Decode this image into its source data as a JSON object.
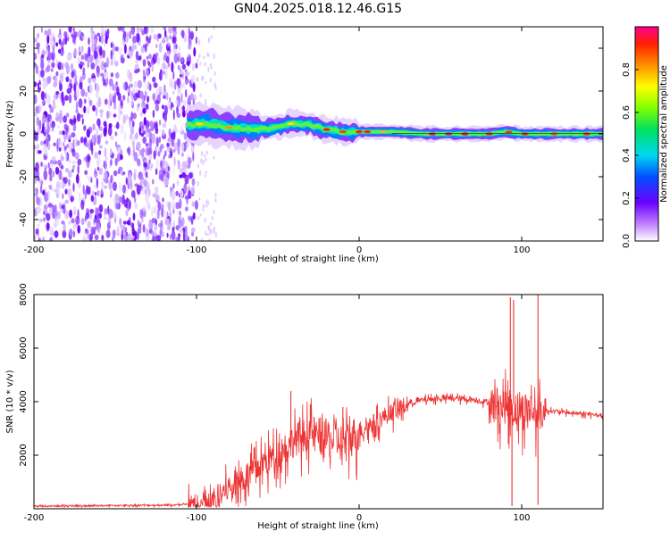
{
  "title": "GN04.2025.018.12.46.G15",
  "chart_data": [
    {
      "type": "heatmap",
      "xlabel": "Height of straight line (km)",
      "ylabel": "Frequency (Hz)",
      "xlim": [
        -200,
        150
      ],
      "ylim": [
        -50,
        50
      ],
      "x_ticks": [
        -200,
        -100,
        0,
        100
      ],
      "y_ticks": [
        -40,
        -20,
        0,
        20,
        40
      ],
      "colorbar": {
        "label": "Normalized spectral amplitude",
        "range": [
          0,
          1
        ],
        "ticks": [
          0.0,
          0.2,
          0.4,
          0.6,
          0.8
        ]
      },
      "ridge": {
        "x": [
          -105,
          -95,
          -80,
          -60,
          -40,
          -30,
          -20,
          -10,
          0,
          20,
          40,
          60,
          80,
          90,
          100,
          110,
          150
        ],
        "y": [
          4,
          5,
          3,
          2,
          5,
          4,
          2,
          1,
          1,
          1,
          0,
          0,
          0,
          1,
          0,
          0,
          0
        ]
      }
    },
    {
      "type": "line",
      "xlabel": "Height of straight line (km)",
      "ylabel": "SNR (10 * v/v)",
      "xlim": [
        -200,
        150
      ],
      "ylim": [
        0,
        8000
      ],
      "x_ticks": [
        -200,
        -100,
        0,
        100
      ],
      "y_ticks": [
        2000,
        4000,
        6000,
        8000
      ],
      "color": "#ee3333",
      "envelope": {
        "x": [
          -200,
          -110,
          -100,
          -90,
          -80,
          -70,
          -60,
          -50,
          -40,
          -30,
          -20,
          -10,
          0,
          10,
          20,
          30,
          40,
          50,
          60,
          70,
          80,
          90,
          95,
          100,
          105,
          110,
          115,
          130,
          150
        ],
        "y": [
          100,
          150,
          200,
          400,
          900,
          1300,
          1800,
          2200,
          2700,
          3000,
          2800,
          2600,
          3000,
          3300,
          3700,
          3950,
          4100,
          4150,
          4150,
          4100,
          4000,
          4000,
          3900,
          3800,
          3900,
          3750,
          3700,
          3600,
          3500
        ]
      },
      "spikes": [
        {
          "x": -42,
          "y": 4400
        },
        {
          "x": -30,
          "y": 3900
        },
        {
          "x": -10,
          "y": 3800
        },
        {
          "x": 93,
          "y": 7900
        },
        {
          "x": 95,
          "y": 7800
        },
        {
          "x": 110,
          "y": 8000
        },
        {
          "x": 94,
          "y": 100
        },
        {
          "x": 110,
          "y": 150
        }
      ]
    }
  ]
}
